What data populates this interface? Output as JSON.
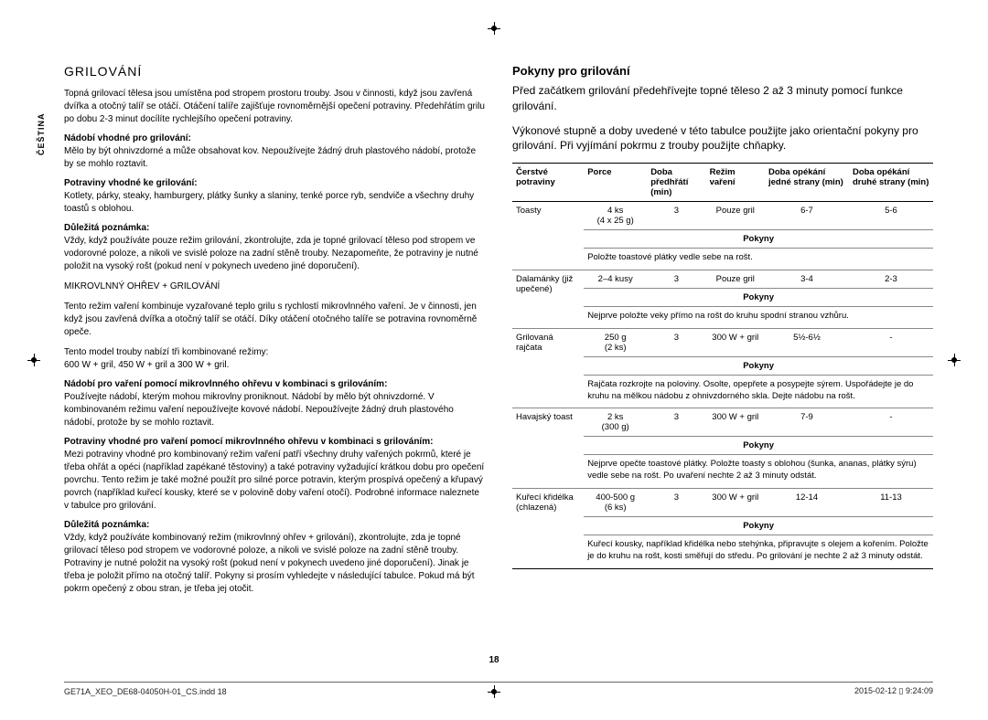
{
  "language_tab": "ČEŠTINA",
  "left": {
    "title": "GRILOVÁNÍ",
    "p1": "Topná grilovací tělesa jsou umístěna pod stropem prostoru trouby. Jsou v činnosti, když jsou zavřená dvířka a otočný talíř se otáčí. Otáčení talíře zajišťuje rovnoměrnější opečení potraviny. Předehřátím grilu po dobu 2-3 minut docílíte rychlejšího opečení potraviny.",
    "h_nadobi": "Nádobí vhodné pro grilování:",
    "p_nadobi": "Mělo by být ohnivzdorné a může obsahovat kov. Nepoužívejte žádný druh plastového nádobí, protože by se mohlo roztavit.",
    "h_potr": "Potraviny vhodné ke grilování:",
    "p_potr": "Kotlety, párky, steaky, hamburgery, plátky šunky a slaniny, tenké porce ryb, sendviče a všechny druhy toastů s oblohou.",
    "h_dulez1": "Důležitá poznámka:",
    "p_dulez1": "Vždy, když používáte pouze režim grilování, zkontrolujte, zda je topné grilovací těleso pod stropem ve vodorovné poloze, a nikoli ve svislé poloze na zadní stěně trouby. Nezapomeňte, že potraviny je nutné položit na vysoký rošt (pokud není v pokynech uvedeno jiné doporučení).",
    "mw_title": "MIKROVLNNÝ OHŘEV + GRILOVÁNÍ",
    "p_mw1": "Tento režim vaření kombinuje vyzařované teplo grilu s rychlostí mikrovlnného vaření. Je v činnosti, jen když jsou zavřená dvířka a otočný talíř se otáčí. Díky otáčení otočného talíře se potravina rovnoměrně opeče.",
    "p_mw2": "Tento model trouby nabízí tři kombinované režimy:",
    "p_mw3": "600 W + gril, 450 W + gril a 300 W + gril.",
    "h_nadobi2": "Nádobí pro vaření pomocí mikrovlnného ohřevu v kombinaci s grilováním:",
    "p_nadobi2": "Používejte nádobí, kterým mohou mikrovlny proniknout. Nádobí by mělo být ohnivzdorné. V kombinovaném režimu vaření nepoužívejte kovové nádobí. Nepoužívejte žádný druh plastového nádobí, protože by se mohlo roztavit.",
    "h_potr2": "Potraviny vhodné pro vaření pomocí mikrovlnného ohřevu v kombinaci s grilováním:",
    "p_potr2": "Mezi potraviny vhodné pro kombinovaný režim vaření patří všechny druhy vařených pokrmů, které je třeba ohřát a opéci (například zapékané těstoviny) a také potraviny vyžadující krátkou dobu pro opečení povrchu. Tento režim je také možné použít pro silné porce potravin, kterým prospívá opečený a křupavý povrch (například kuřecí kousky, které se v polovině doby vaření otočí). Podrobné informace naleznete v tabulce pro grilování.",
    "h_dulez2": "Důležitá poznámka:",
    "p_dulez2": "Vždy, když používáte kombinovaný režim (mikrovlnný ohřev + grilování), zkontrolujte, zda je topné grilovací těleso pod stropem ve vodorovné poloze, a nikoli ve svislé poloze na zadní stěně trouby. Potraviny je nutné položit na vysoký rošt (pokud není v pokynech uvedeno jiné doporučení). Jinak je třeba je položit přímo na otočný talíř. Pokyny si prosím vyhledejte v následující tabulce. Pokud má být pokrm opečený z obou stran, je třeba jej otočit."
  },
  "right": {
    "title": "Pokyny pro grilování",
    "intro1": "Před začátkem grilování předehřívejte topné těleso 2 až 3 minuty pomocí funkce grilování.",
    "intro2": "Výkonové stupně a doby uvedené v této tabulce použijte jako orientační pokyny pro grilování. Při vyjímání pokrmu z trouby použijte chňapky.",
    "th": {
      "c0": "Čerstvé potraviny",
      "c1": "Porce",
      "c2": "Doba předhřátí (min)",
      "c3": "Režim vaření",
      "c4": "Doba opékání jedné strany (min)",
      "c5": "Doba opékání druhé strany (min)"
    },
    "pokyny_label": "Pokyny",
    "rows": [
      {
        "food": "Toasty",
        "porce": "4 ks\n(4 x 25 g)",
        "preheat": "3",
        "mode": "Pouze gril",
        "t1": "6-7",
        "t2": "5-6",
        "instr": "Položte toastové plátky vedle sebe na rošt."
      },
      {
        "food": "Dalamánky (již upečené)",
        "porce": "2–4 kusy",
        "preheat": "3",
        "mode": "Pouze gril",
        "t1": "3-4",
        "t2": "2-3",
        "instr": "Nejprve položte veky přímo na rošt do kruhu spodní stranou vzhůru."
      },
      {
        "food": "Grilovaná rajčata",
        "porce": "250 g\n(2 ks)",
        "preheat": "3",
        "mode": "300 W + gril",
        "t1": "5½-6½",
        "t2": "-",
        "instr": "Rajčata rozkrojte na poloviny. Osolte, opepřete a posypejte sýrem. Uspořádejte je do kruhu na mělkou nádobu z ohnivzdorného skla. Dejte nádobu na rošt."
      },
      {
        "food": "Havajský toast",
        "porce": "2 ks\n(300 g)",
        "preheat": "3",
        "mode": "300 W + gril",
        "t1": "7-9",
        "t2": "-",
        "instr": "Nejprve opečte toastové plátky. Položte toasty s oblohou (šunka, ananas, plátky sýru) vedle sebe na rošt. Po uvaření nechte 2 až 3 minuty odstát."
      },
      {
        "food": "Kuřecí křidélka (chlazená)",
        "porce": "400-500 g\n(6 ks)",
        "preheat": "3",
        "mode": "300 W + gril",
        "t1": "12-14",
        "t2": "11-13",
        "instr": "Kuřecí kousky, například křidélka nebo stehýnka, připravujte s olejem a kořením. Položte je do kruhu na rošt, kosti směřují do středu. Po grilování je nechte 2 až 3 minuty odstát."
      }
    ]
  },
  "page_number": "18",
  "footer_left": "GE71A_XEO_DE68-04050H-01_CS.indd   18",
  "footer_right": "2015-02-12   ▯ 9:24:09"
}
